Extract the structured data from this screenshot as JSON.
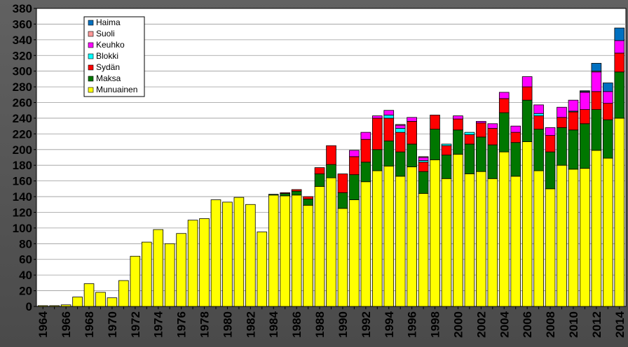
{
  "chart_data": {
    "type": "bar",
    "stacked": true,
    "title": "",
    "xlabel": "",
    "ylabel": "",
    "ylim": [
      0,
      380
    ],
    "ytick_step": 20,
    "grid": "horizontal",
    "legend_position": "top-left",
    "x_tick_every": 2,
    "categories": [
      "1964",
      "1965",
      "1966",
      "1967",
      "1968",
      "1969",
      "1970",
      "1971",
      "1972",
      "1973",
      "1974",
      "1975",
      "1976",
      "1977",
      "1978",
      "1979",
      "1980",
      "1981",
      "1982",
      "1983",
      "1984",
      "1985",
      "1986",
      "1987",
      "1988",
      "1989",
      "1990",
      "1991",
      "1992",
      "1993",
      "1994",
      "1995",
      "1996",
      "1997",
      "1998",
      "1999",
      "2000",
      "2001",
      "2002",
      "2003",
      "2004",
      "2005",
      "2006",
      "2007",
      "2008",
      "2009",
      "2010",
      "2011",
      "2012",
      "2013",
      "2014"
    ],
    "series": [
      {
        "name": "Munuainen",
        "color": "#ffff00",
        "values": [
          1,
          1,
          2,
          12,
          29,
          18,
          11,
          33,
          64,
          82,
          98,
          80,
          93,
          110,
          112,
          136,
          133,
          139,
          130,
          95,
          142,
          141,
          142,
          129,
          153,
          164,
          125,
          136,
          159,
          173,
          179,
          166,
          178,
          144,
          187,
          163,
          194,
          169,
          172,
          163,
          197,
          166,
          210,
          173,
          150,
          180,
          175,
          176,
          199,
          189,
          240
        ]
      },
      {
        "name": "Maksa",
        "color": "#007700",
        "values": [
          0,
          0,
          0,
          0,
          0,
          0,
          0,
          0,
          0,
          0,
          0,
          0,
          0,
          0,
          0,
          0,
          0,
          0,
          0,
          0,
          1,
          3,
          5,
          8,
          16,
          17,
          20,
          32,
          25,
          27,
          32,
          31,
          29,
          28,
          39,
          30,
          31,
          38,
          44,
          43,
          50,
          43,
          53,
          53,
          47,
          48,
          50,
          57,
          52,
          49,
          59
        ]
      },
      {
        "name": "Sydän",
        "color": "#ff0000",
        "values": [
          0,
          0,
          0,
          0,
          0,
          0,
          0,
          0,
          0,
          0,
          0,
          0,
          0,
          0,
          0,
          0,
          0,
          0,
          0,
          0,
          0,
          1,
          2,
          3,
          8,
          24,
          24,
          23,
          29,
          40,
          29,
          25,
          29,
          12,
          18,
          12,
          14,
          12,
          18,
          21,
          18,
          13,
          17,
          17,
          21,
          13,
          23,
          18,
          23,
          21,
          24
        ]
      },
      {
        "name": "Blokki",
        "color": "#00ffff",
        "values": [
          0,
          0,
          0,
          0,
          0,
          0,
          0,
          0,
          0,
          0,
          0,
          0,
          0,
          0,
          0,
          0,
          0,
          0,
          0,
          0,
          0,
          0,
          0,
          0,
          0,
          0,
          0,
          0,
          0,
          0,
          4,
          5,
          0,
          2,
          0,
          2,
          0,
          3,
          0,
          0,
          0,
          0,
          0,
          3,
          0,
          0,
          1,
          0,
          0,
          0,
          0
        ]
      },
      {
        "name": "Keuhko",
        "color": "#ff00ff",
        "values": [
          0,
          0,
          0,
          0,
          0,
          0,
          0,
          0,
          0,
          0,
          0,
          0,
          0,
          0,
          0,
          0,
          0,
          0,
          0,
          0,
          0,
          0,
          0,
          0,
          0,
          0,
          0,
          8,
          9,
          3,
          6,
          4,
          5,
          4,
          0,
          0,
          4,
          0,
          2,
          6,
          8,
          8,
          13,
          11,
          10,
          13,
          14,
          22,
          25,
          15,
          16
        ]
      },
      {
        "name": "Suoli",
        "color": "#ff9999",
        "values": [
          0,
          0,
          0,
          0,
          0,
          0,
          0,
          0,
          0,
          0,
          0,
          0,
          0,
          0,
          0,
          0,
          0,
          0,
          0,
          0,
          0,
          0,
          0,
          0,
          0,
          0,
          0,
          0,
          0,
          0,
          0,
          1,
          0,
          1,
          0,
          0,
          0,
          0,
          0,
          0,
          0,
          0,
          0,
          0,
          0,
          0,
          0,
          1,
          1,
          0,
          0
        ]
      },
      {
        "name": "Haima",
        "color": "#0070c0",
        "values": [
          0,
          0,
          0,
          0,
          0,
          0,
          0,
          0,
          0,
          0,
          0,
          0,
          0,
          0,
          0,
          0,
          0,
          0,
          0,
          0,
          0,
          0,
          0,
          0,
          0,
          0,
          0,
          0,
          0,
          0,
          0,
          0,
          0,
          0,
          0,
          0,
          0,
          0,
          0,
          0,
          0,
          0,
          0,
          0,
          0,
          0,
          0,
          1,
          10,
          11,
          16
        ]
      }
    ]
  },
  "style": {
    "plot_background": "#ffffff",
    "gridline_color": "#999999",
    "bar_outline": "#000000"
  }
}
